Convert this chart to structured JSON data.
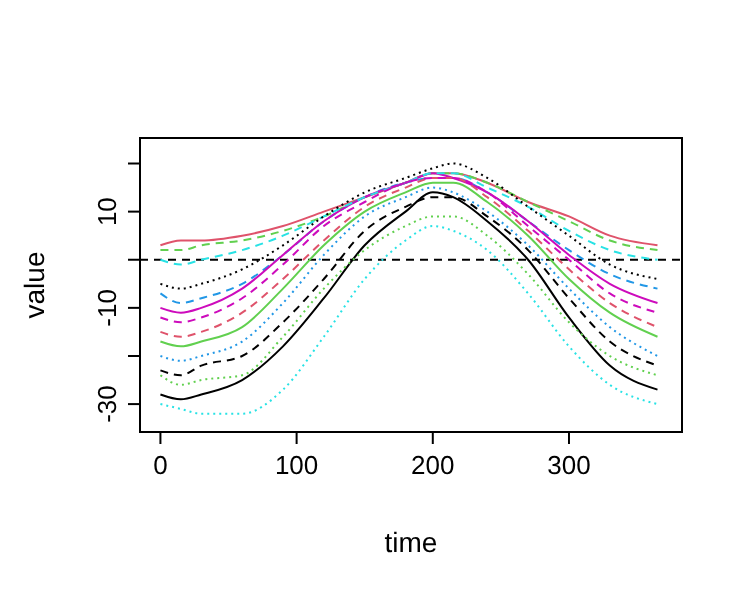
{
  "chart_data": {
    "type": "line",
    "xlabel": "time",
    "ylabel": "value",
    "x": [
      0,
      15,
      30,
      60,
      90,
      120,
      150,
      180,
      200,
      215,
      240,
      270,
      300,
      330,
      365
    ],
    "xlim": [
      -15,
      383
    ],
    "ylim": [
      -35.8,
      25.3
    ],
    "xticks": [
      0,
      100,
      200,
      300
    ],
    "yticks": [
      -30,
      {
        "value": -20,
        "label": null
      },
      -10,
      {
        "value": 0,
        "label": null
      },
      10,
      {
        "value": 20,
        "label": null
      }
    ],
    "grid": false,
    "ref_lines": [
      {
        "axis": "y",
        "value": 0,
        "label": null,
        "color": "#000000",
        "line_style": "dashed"
      }
    ],
    "series": [
      {
        "color": "#000000",
        "line_style": "solid",
        "values": [
          -28,
          -29,
          -28,
          -25,
          -18,
          -8,
          3,
          10,
          14,
          13,
          8,
          0,
          -12,
          -22,
          -27
        ]
      },
      {
        "color": "#df536b",
        "line_style": "solid",
        "values": [
          3,
          4,
          4,
          5,
          7,
          10,
          13,
          16,
          18,
          18,
          16,
          12,
          9,
          5,
          3
        ]
      },
      {
        "color": "#61d04f",
        "line_style": "dashed",
        "values": [
          2,
          2,
          3,
          4,
          6,
          9,
          13,
          16,
          18,
          18,
          16,
          12,
          8,
          4,
          2
        ]
      },
      {
        "color": "#2297e6",
        "line_style": "dashed",
        "values": [
          -7,
          -9,
          -8,
          -5,
          1,
          8,
          13,
          16,
          17,
          17,
          14,
          8,
          2,
          -3,
          -6
        ]
      },
      {
        "color": "#28e2e5",
        "line_style": "dotted",
        "values": [
          -30,
          -31,
          -32,
          -32,
          -27,
          -16,
          -4,
          4,
          7,
          6,
          2,
          -7,
          -18,
          -26,
          -30
        ]
      },
      {
        "color": "#cd0bbc",
        "line_style": "solid",
        "values": [
          -10,
          -11,
          -10,
          -6,
          1,
          8,
          13,
          16,
          18,
          17,
          14,
          8,
          1,
          -5,
          -9
        ]
      },
      {
        "color": "#000000",
        "line_style": "dashed",
        "values": [
          -23,
          -24,
          -22,
          -20,
          -13,
          -4,
          6,
          11,
          13,
          13,
          9,
          2,
          -8,
          -17,
          -22
        ]
      },
      {
        "color": "#61d04f",
        "line_style": "dotted",
        "values": [
          -24,
          -26,
          -25,
          -24,
          -16,
          -6,
          2,
          7,
          9,
          9,
          5,
          -3,
          -13,
          -20,
          -24
        ]
      },
      {
        "color": "#df536b",
        "line_style": "dashed",
        "values": [
          -15,
          -16,
          -15,
          -11,
          -4,
          4,
          11,
          15,
          17,
          17,
          13,
          6,
          -2,
          -9,
          -14
        ]
      },
      {
        "color": "#2297e6",
        "line_style": "dotted",
        "values": [
          -20,
          -21,
          -20,
          -17,
          -9,
          1,
          9,
          13,
          15,
          14,
          10,
          3,
          -6,
          -14,
          -20
        ]
      },
      {
        "color": "#28e2e5",
        "line_style": "dashed",
        "values": [
          0,
          -1,
          0,
          2,
          5,
          9,
          13,
          16,
          18,
          18,
          15,
          11,
          6,
          2,
          0
        ]
      },
      {
        "color": "#000000",
        "line_style": "dotted",
        "values": [
          -5,
          -6,
          -5,
          -2,
          3,
          9,
          14,
          17,
          19,
          20,
          17,
          11,
          5,
          -1,
          -4
        ]
      },
      {
        "color": "#cd0bbc",
        "line_style": "dashed",
        "values": [
          -12,
          -13,
          -12,
          -8,
          -1,
          7,
          12,
          16,
          17,
          17,
          14,
          7,
          0,
          -7,
          -11
        ]
      },
      {
        "color": "#61d04f",
        "line_style": "solid",
        "values": [
          -17,
          -18,
          -17,
          -14,
          -6,
          3,
          10,
          14,
          16,
          16,
          12,
          5,
          -4,
          -11,
          -16
        ]
      }
    ]
  }
}
